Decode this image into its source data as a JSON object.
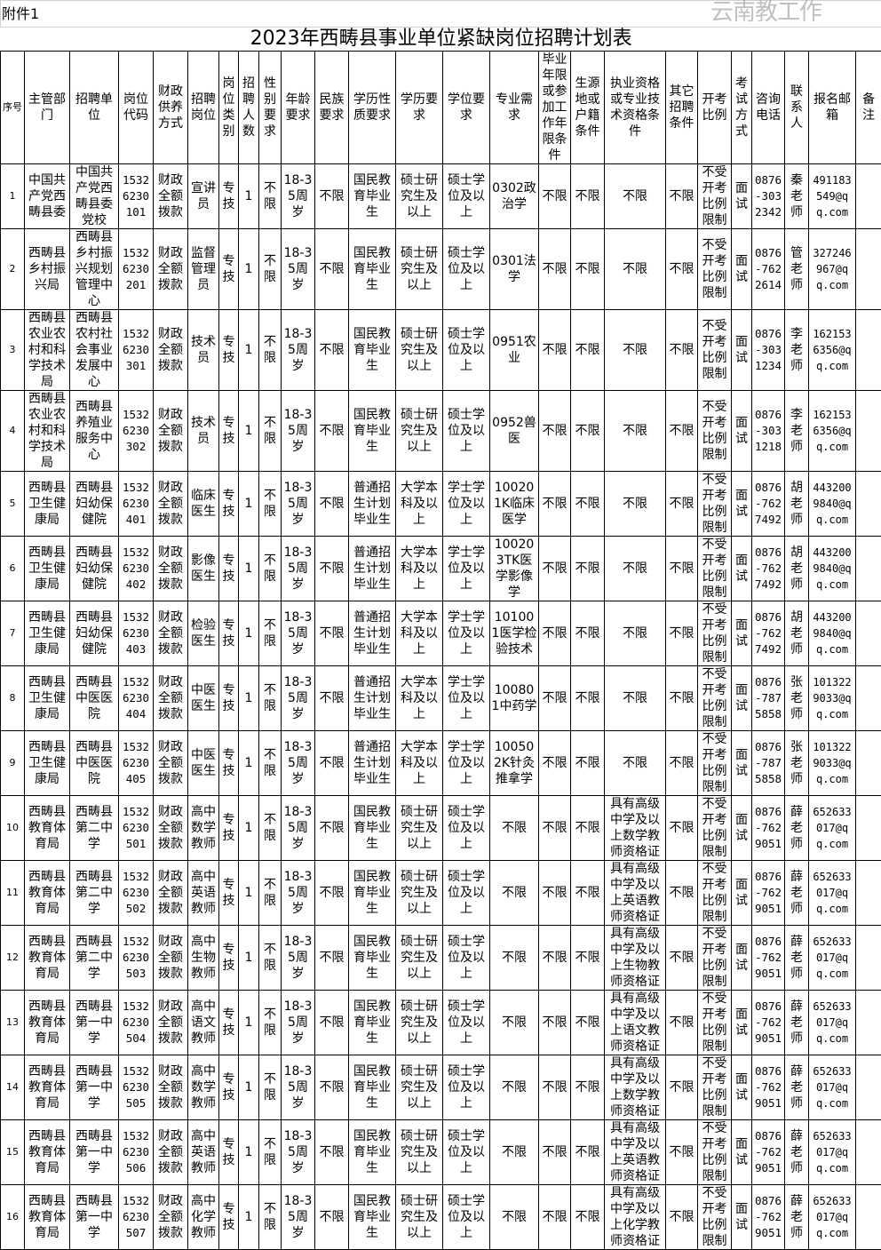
{
  "attachment_label": "附件1",
  "title": "2023年西畴县事业单位紧缺岗位招聘计划表",
  "watermark": "云南教工作",
  "headers": [
    "序号",
    "主管部门",
    "招聘单位",
    "岗位代码",
    "财政供养方式",
    "招聘岗位",
    "岗位类别",
    "招聘人数",
    "性别要求",
    "年龄要求",
    "民族要求",
    "学历性质要求",
    "学历要求",
    "学位要求",
    "专业需求",
    "毕业年限或参加工作年限条件",
    "生源地或户籍条件",
    "执业资格或专业技术资格条件",
    "其它招聘条件",
    "开考比例",
    "考试方式",
    "咨询电话",
    "联系人",
    "报名邮箱",
    "备注"
  ],
  "rows": [
    [
      "1",
      "中国共产党西畴县委",
      "中国共产党西畴县委党校",
      "15326230101",
      "财政全额拨款",
      "宣讲员",
      "专技",
      "1",
      "不限",
      "18-35周岁",
      "不限",
      "国民教育毕业生",
      "硕士研究生及以上",
      "硕士学位及以上",
      "0302政治学",
      "不限",
      "不限",
      "不限",
      "不限",
      "不受开考比例限制",
      "面试",
      "0876-3032342",
      "秦老师",
      "491183549@qq.com",
      ""
    ],
    [
      "2",
      "西畴县乡村振兴局",
      "西畴县乡村振兴规划管理中心",
      "15326230201",
      "财政全额拨款",
      "监督管理员",
      "专技",
      "1",
      "不限",
      "18-35周岁",
      "不限",
      "国民教育毕业生",
      "硕士研究生及以上",
      "硕士学位及以上",
      "0301法学",
      "不限",
      "不限",
      "不限",
      "不限",
      "不受开考比例限制",
      "面试",
      "0876-7622614",
      "管老师",
      "327246967@qq.com",
      ""
    ],
    [
      "3",
      "西畴县农业农村和科学技术局",
      "西畴县农村社会事业发展中心",
      "15326230301",
      "财政全额拨款",
      "技术员",
      "专技",
      "1",
      "不限",
      "18-35周岁",
      "不限",
      "国民教育毕业生",
      "硕士研究生及以上",
      "硕士学位及以上",
      "0951农业",
      "不限",
      "不限",
      "不限",
      "不限",
      "不受开考比例限制",
      "面试",
      "0876-3031234",
      "李老师",
      "1621536356@qq.com",
      ""
    ],
    [
      "4",
      "西畴县农业农村和科学技术局",
      "西畴县养殖业服务中心",
      "15326230302",
      "财政全额拨款",
      "技术员",
      "专技",
      "1",
      "不限",
      "18-35周岁",
      "不限",
      "国民教育毕业生",
      "硕士研究生及以上",
      "硕士学位及以上",
      "0952兽医",
      "不限",
      "不限",
      "不限",
      "不限",
      "不受开考比例限制",
      "面试",
      "0876-3031218",
      "李老师",
      "1621536356@qq.com",
      ""
    ],
    [
      "5",
      "西畴县卫生健康局",
      "西畴县妇幼保健院",
      "15326230401",
      "财政全额拨款",
      "临床医生",
      "专技",
      "1",
      "不限",
      "18-35周岁",
      "不限",
      "普通招生计划毕业生",
      "大学本科及以上",
      "学士学位及以上",
      "100201K临床医学",
      "不限",
      "不限",
      "不限",
      "不限",
      "不受开考比例限制",
      "面试",
      "0876-7627492",
      "胡老师",
      "4432009840@qq.com",
      ""
    ],
    [
      "6",
      "西畴县卫生健康局",
      "西畴县妇幼保健院",
      "15326230402",
      "财政全额拨款",
      "影像医生",
      "专技",
      "1",
      "不限",
      "18-35周岁",
      "不限",
      "普通招生计划毕业生",
      "大学本科及以上",
      "学士学位及以上",
      "100203TK医学影像学",
      "不限",
      "不限",
      "不限",
      "不限",
      "不受开考比例限制",
      "面试",
      "0876-7627492",
      "胡老师",
      "4432009840@qq.com",
      ""
    ],
    [
      "7",
      "西畴县卫生健康局",
      "西畴县妇幼保健院",
      "15326230403",
      "财政全额拨款",
      "检验医生",
      "专技",
      "1",
      "不限",
      "18-35周岁",
      "不限",
      "普通招生计划毕业生",
      "大学本科及以上",
      "学士学位及以上",
      "101001医学检验技术",
      "不限",
      "不限",
      "不限",
      "不限",
      "不受开考比例限制",
      "面试",
      "0876-7627492",
      "胡老师",
      "4432009840@qq.com",
      ""
    ],
    [
      "8",
      "西畴县卫生健康局",
      "西畴县中医医院",
      "15326230404",
      "财政全额拨款",
      "中医医生",
      "专技",
      "1",
      "不限",
      "18-35周岁",
      "不限",
      "普通招生计划毕业生",
      "大学本科及以上",
      "学士学位及以上",
      "100801中药学",
      "不限",
      "不限",
      "不限",
      "不限",
      "不受开考比例限制",
      "面试",
      "0876-7875858",
      "张老师",
      "1013229033@qq.com",
      ""
    ],
    [
      "9",
      "西畴县卫生健康局",
      "西畴县中医医院",
      "15326230405",
      "财政全额拨款",
      "中医医生",
      "专技",
      "1",
      "不限",
      "18-35周岁",
      "不限",
      "普通招生计划毕业生",
      "大学本科及以上",
      "学士学位及以上",
      "100502K针灸推拿学",
      "不限",
      "不限",
      "不限",
      "不限",
      "不受开考比例限制",
      "面试",
      "0876-7875858",
      "张老师",
      "1013229033@qq.com",
      ""
    ],
    [
      "10",
      "西畴县教育体育局",
      "西畴县第二中学",
      "15326230501",
      "财政全额拨款",
      "高中数学教师",
      "专技",
      "1",
      "不限",
      "18-35周岁",
      "不限",
      "国民教育毕业生",
      "硕士研究生及以上",
      "硕士学位及以上",
      "不限",
      "不限",
      "不限",
      "具有高级中学及以上数学教师资格证",
      "不限",
      "不受开考比例限制",
      "面试",
      "0876-7629051",
      "薛老师",
      "652633017@qq.com",
      ""
    ],
    [
      "11",
      "西畴县教育体育局",
      "西畴县第二中学",
      "15326230502",
      "财政全额拨款",
      "高中英语教师",
      "专技",
      "1",
      "不限",
      "18-35周岁",
      "不限",
      "国民教育毕业生",
      "硕士研究生及以上",
      "硕士学位及以上",
      "不限",
      "不限",
      "不限",
      "具有高级中学及以上英语教师资格证",
      "不限",
      "不受开考比例限制",
      "面试",
      "0876-7629051",
      "薛老师",
      "652633017@qq.com",
      ""
    ],
    [
      "12",
      "西畴县教育体育局",
      "西畴县第二中学",
      "15326230503",
      "财政全额拨款",
      "高中生物教师",
      "专技",
      "1",
      "不限",
      "18-35周岁",
      "不限",
      "国民教育毕业生",
      "硕士研究生及以上",
      "硕士学位及以上",
      "不限",
      "不限",
      "不限",
      "具有高级中学及以上生物教师资格证",
      "不限",
      "不受开考比例限制",
      "面试",
      "0876-7629051",
      "薛老师",
      "652633017@qq.com",
      ""
    ],
    [
      "13",
      "西畴县教育体育局",
      "西畴县第一中学",
      "15326230504",
      "财政全额拨款",
      "高中语文教师",
      "专技",
      "1",
      "不限",
      "18-35周岁",
      "不限",
      "国民教育毕业生",
      "硕士研究生及以上",
      "硕士学位及以上",
      "不限",
      "不限",
      "不限",
      "具有高级中学及以上语文教师资格证",
      "不限",
      "不受开考比例限制",
      "面试",
      "0876-7629051",
      "薛老师",
      "652633017@qq.com",
      ""
    ],
    [
      "14",
      "西畴县教育体育局",
      "西畴县第一中学",
      "15326230505",
      "财政全额拨款",
      "高中数学教师",
      "专技",
      "1",
      "不限",
      "18-35周岁",
      "不限",
      "国民教育毕业生",
      "硕士研究生及以上",
      "硕士学位及以上",
      "不限",
      "不限",
      "不限",
      "具有高级中学及以上数学教师资格证",
      "不限",
      "不受开考比例限制",
      "面试",
      "0876-7629051",
      "薛老师",
      "652633017@qq.com",
      ""
    ],
    [
      "15",
      "西畴县教育体育局",
      "西畴县第一中学",
      "15326230506",
      "财政全额拨款",
      "高中英语教师",
      "专技",
      "1",
      "不限",
      "18-35周岁",
      "不限",
      "国民教育毕业生",
      "硕士研究生及以上",
      "硕士学位及以上",
      "不限",
      "不限",
      "不限",
      "具有高级中学及以上英语教师资格证",
      "不限",
      "不受开考比例限制",
      "面试",
      "0876-7629051",
      "薛老师",
      "652633017@qq.com",
      ""
    ],
    [
      "16",
      "西畴县教育体育局",
      "西畴县第一中学",
      "15326230507",
      "财政全额拨款",
      "高中化学教师",
      "专技",
      "1",
      "不限",
      "18-35周岁",
      "不限",
      "国民教育毕业生",
      "硕士研究生及以上",
      "硕士学位及以上",
      "不限",
      "不限",
      "不限",
      "具有高级中学及以上化学教师资格证",
      "不限",
      "不受开考比例限制",
      "面试",
      "0876-7629051",
      "薛老师",
      "652633017@qq.com",
      ""
    ]
  ]
}
